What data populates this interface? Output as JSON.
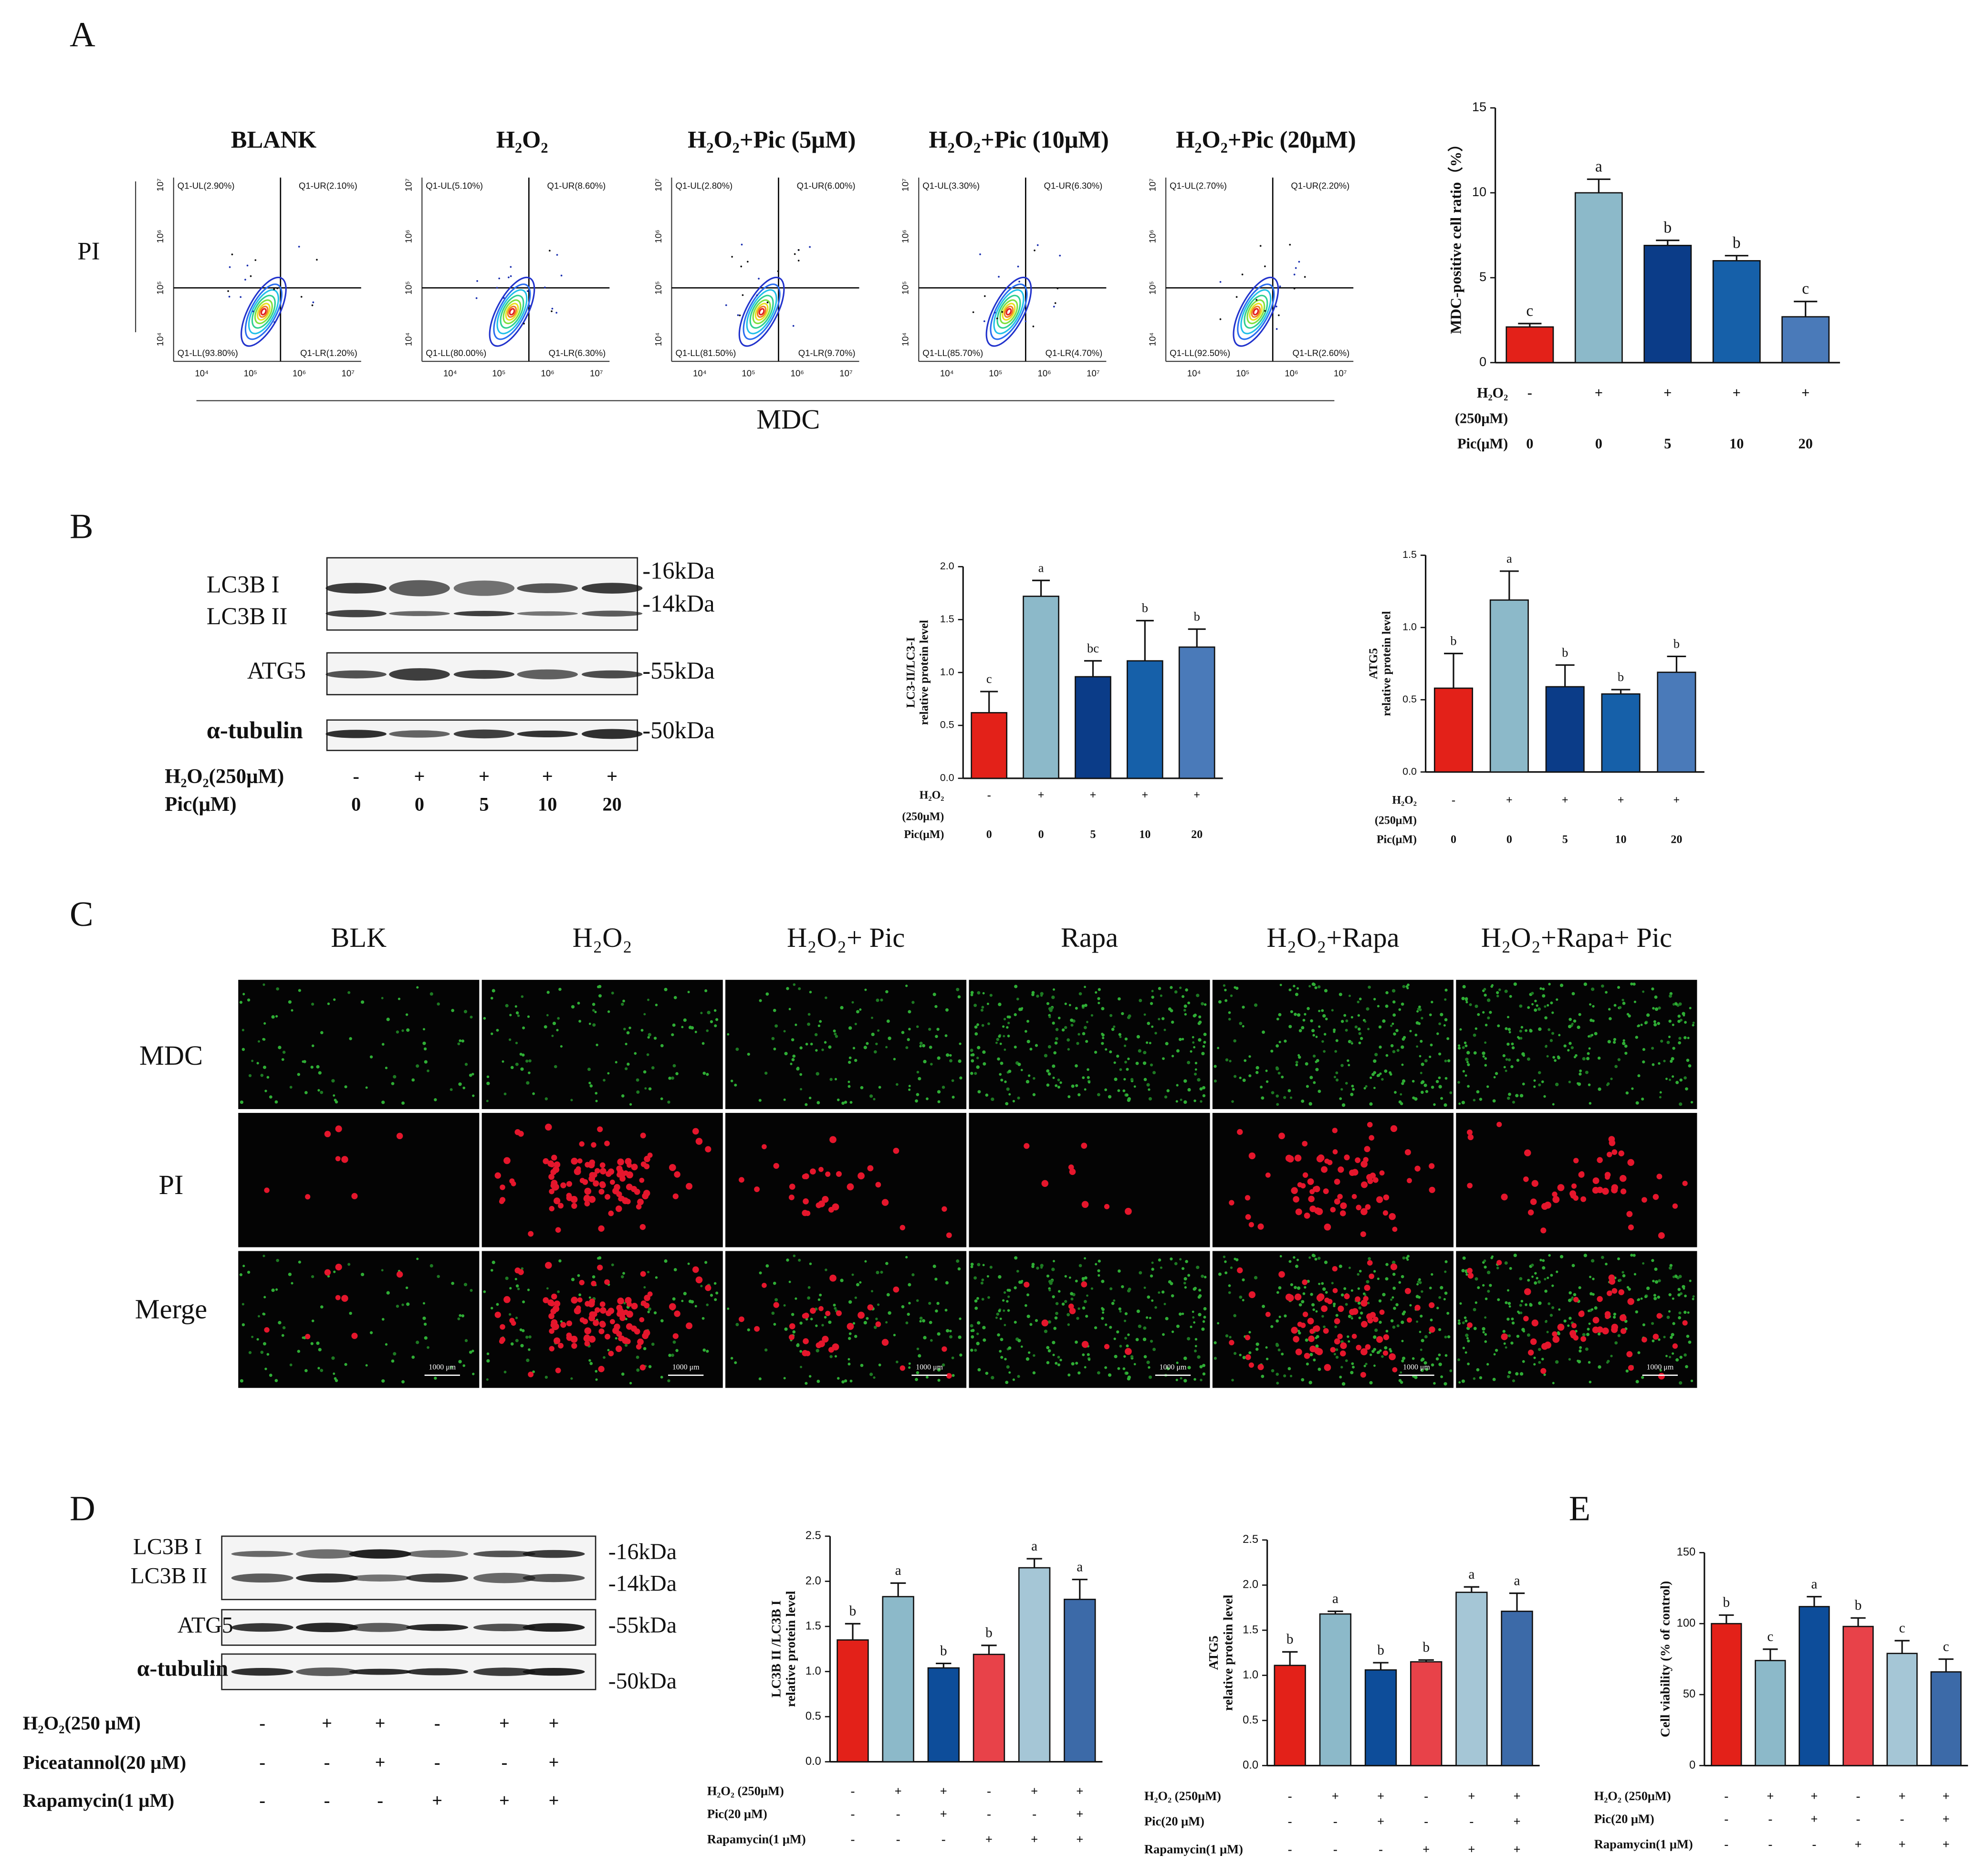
{
  "panel_labels": [
    "A",
    "B",
    "C",
    "D",
    "E"
  ],
  "flow": {
    "plots": [
      {
        "title": "BLANK",
        "quadrants": [
          "Q1-UL(2.90%)",
          "Q1-UR(2.10%)",
          "Q1-LL(93.80%)",
          "Q1-LR(1.20%)"
        ]
      },
      {
        "title": "H₂O₂",
        "quadrants": [
          "Q1-UL(5.10%)",
          "Q1-UR(8.60%)",
          "Q1-LL(80.00%)",
          "Q1-LR(6.30%)"
        ]
      },
      {
        "title": "H₂O₂+Pic (5μM)",
        "quadrants": [
          "Q1-UL(2.80%)",
          "Q1-UR(6.00%)",
          "Q1-LL(81.50%)",
          "Q1-LR(9.70%)"
        ]
      },
      {
        "title": "H₂O₂+Pic (10μM)",
        "quadrants": [
          "Q1-UL(3.30%)",
          "Q1-UR(6.30%)",
          "Q1-LL(85.70%)",
          "Q1-LR(4.70%)"
        ]
      },
      {
        "title": "H₂O₂+Pic (20μM)",
        "quadrants": [
          "Q1-UL(2.70%)",
          "Q1-UR(2.20%)",
          "Q1-LL(92.50%)",
          "Q1-LR(2.60%)"
        ]
      }
    ],
    "x_ticks": [
      "10⁴",
      "10⁵",
      "10⁶",
      "10⁷"
    ],
    "y_ticks": [
      "10⁴",
      "10⁵",
      "10⁶",
      "10⁷"
    ],
    "y_label": "PI",
    "x_label": "MDC"
  },
  "blot_b": {
    "bands": [
      "LC3B I",
      "LC3B II",
      "ATG5",
      "α-tubulin"
    ],
    "sizes": [
      "-16kDa",
      "-14kDa",
      "-55kDa",
      "-50kDa"
    ],
    "rows": [
      {
        "name": "H₂O₂(250μM)",
        "values": [
          "-",
          "+",
          "+",
          "+",
          "+"
        ]
      },
      {
        "name": "Pic(μM)",
        "values": [
          "0",
          "0",
          "5",
          "10",
          "20"
        ]
      }
    ]
  },
  "imaging": {
    "columns": [
      "BLK",
      "H₂O₂",
      "H₂O₂+ Pic",
      "Rapa",
      "H₂O₂+Rapa",
      "H₂O₂+Rapa+ Pic"
    ],
    "rows": [
      "MDC",
      "PI",
      "Merge"
    ],
    "scale_bar": "1000 μm"
  },
  "blot_d": {
    "bands": [
      "LC3B I",
      "LC3B II",
      "ATG5",
      "α-tubulin"
    ],
    "sizes": [
      "-16kDa",
      "-14kDa",
      "-55kDa",
      "-50kDa"
    ],
    "rows": [
      {
        "name": "H₂O₂(250 μM)",
        "values": [
          "-",
          "+",
          "+",
          "-",
          "+",
          "+"
        ]
      },
      {
        "name": "Piceatannol(20 μM)",
        "values": [
          "-",
          "-",
          "+",
          "-",
          "-",
          "+"
        ]
      },
      {
        "name": "Rapamycin(1 μM)",
        "values": [
          "-",
          "-",
          "-",
          "+",
          "+",
          "+"
        ]
      }
    ]
  },
  "chart_data": [
    {
      "type": "bar",
      "ylabel": [
        "MDC-positive cell ratio（%）"
      ],
      "values": [
        2.1,
        10.0,
        6.9,
        6.0,
        2.7
      ],
      "errors": [
        0.2,
        0.8,
        0.3,
        0.3,
        0.9
      ],
      "annotations": [
        "c",
        "a",
        "b",
        "b",
        "c"
      ],
      "colors": [
        "#e32119",
        "#8cb9c9",
        "#0b3c88",
        "#1660a9",
        "#4a7ab9"
      ],
      "ylim": [
        0,
        15
      ],
      "yticks": [
        0,
        5,
        10,
        15
      ],
      "treatments": [
        {
          "name": [
            "H₂O₂",
            "(250μM)"
          ],
          "values": [
            "-",
            "+",
            "+",
            "+",
            "+"
          ]
        },
        {
          "name": [
            "Pic(μM)"
          ],
          "values": [
            "0",
            "0",
            "5",
            "10",
            "20"
          ]
        }
      ]
    },
    {
      "type": "bar",
      "ylabel": [
        "LC3-II/LC3-I",
        "relative protein level"
      ],
      "values": [
        0.62,
        1.72,
        0.96,
        1.11,
        1.24
      ],
      "errors": [
        0.2,
        0.15,
        0.15,
        0.38,
        0.17
      ],
      "annotations": [
        "c",
        "a",
        "bc",
        "b",
        "b"
      ],
      "colors": [
        "#e32119",
        "#8cb9c9",
        "#0b3c88",
        "#1660a9",
        "#4a7ab9"
      ],
      "ylim": [
        0,
        2
      ],
      "yticks": [
        {
          "value": 0,
          "label": "0.0"
        },
        0.5,
        {
          "value": 1,
          "label": "1.0"
        },
        1.5,
        {
          "value": 2,
          "label": "2.0"
        }
      ],
      "treatments": [
        {
          "name": [
            "H₂O₂",
            "(250μM)"
          ],
          "values": [
            "-",
            "+",
            "+",
            "+",
            "+"
          ]
        },
        {
          "name": [
            "Pic(μM)"
          ],
          "values": [
            "0",
            "0",
            "5",
            "10",
            "20"
          ]
        }
      ]
    },
    {
      "type": "bar",
      "ylabel": [
        "ATG5",
        "relative protein level"
      ],
      "values": [
        0.58,
        1.19,
        0.59,
        0.54,
        0.69
      ],
      "errors": [
        0.24,
        0.2,
        0.15,
        0.03,
        0.11
      ],
      "annotations": [
        "b",
        "a",
        "b",
        "b",
        "b"
      ],
      "colors": [
        "#e32119",
        "#8cb9c9",
        "#0b3c88",
        "#1660a9",
        "#4a7ab9"
      ],
      "ylim": [
        0,
        1.5
      ],
      "yticks": [
        {
          "value": 0,
          "label": "0.0"
        },
        0.5,
        {
          "value": 1,
          "label": "1.0"
        },
        1.5
      ],
      "treatments": [
        {
          "name": [
            "H₂O₂",
            "(250μM)"
          ],
          "values": [
            "-",
            "+",
            "+",
            "+",
            "+"
          ]
        },
        {
          "name": [
            "Pic(μM)"
          ],
          "values": [
            "0",
            "0",
            "5",
            "10",
            "20"
          ]
        }
      ]
    },
    {
      "type": "bar",
      "ylabel": [
        "LC3B II /LC3B I",
        "relative protein level"
      ],
      "values": [
        1.35,
        1.83,
        1.04,
        1.19,
        2.15,
        1.8
      ],
      "errors": [
        0.18,
        0.15,
        0.05,
        0.1,
        0.1,
        0.22
      ],
      "annotations": [
        "b",
        "a",
        "b",
        "b",
        "a",
        "a"
      ],
      "colors": [
        "#e32119",
        "#8cb9c9",
        "#0d4d9a",
        "#e84249",
        "#a5c6d6",
        "#3c6aa8"
      ],
      "ylim": [
        0,
        2.5
      ],
      "yticks": [
        {
          "value": 0,
          "label": "0.0"
        },
        0.5,
        {
          "value": 1,
          "label": "1.0"
        },
        1.5,
        {
          "value": 2,
          "label": "2.0"
        },
        2.5
      ],
      "treatments": [
        {
          "name": [
            "H₂O₂ (250μM)"
          ],
          "values": [
            "-",
            "+",
            "+",
            "-",
            "+",
            "+"
          ]
        },
        {
          "name": [
            "Pic(20 μM)"
          ],
          "values": [
            "-",
            "-",
            "+",
            "-",
            "-",
            "+"
          ]
        },
        {
          "name": [
            "Rapamycin(1 μM)"
          ],
          "values": [
            "-",
            "-",
            "-",
            "+",
            "+",
            "+"
          ]
        }
      ]
    },
    {
      "type": "bar",
      "ylabel": [
        "ATG5",
        "relative protein level"
      ],
      "values": [
        1.11,
        1.68,
        1.06,
        1.15,
        1.92,
        1.71
      ],
      "errors": [
        0.15,
        0.03,
        0.08,
        0.02,
        0.06,
        0.2
      ],
      "annotations": [
        "b",
        "a",
        "b",
        "b",
        "a",
        "a"
      ],
      "colors": [
        "#e32119",
        "#8cb9c9",
        "#0d4d9a",
        "#e84249",
        "#a5c6d6",
        "#3c6aa8"
      ],
      "ylim": [
        0,
        2.5
      ],
      "yticks": [
        {
          "value": 0,
          "label": "0.0"
        },
        0.5,
        {
          "value": 1,
          "label": "1.0"
        },
        1.5,
        {
          "value": 2,
          "label": "2.0"
        },
        2.5
      ],
      "treatments": [
        {
          "name": [
            "H₂O₂ (250μM)"
          ],
          "values": [
            "-",
            "+",
            "+",
            "-",
            "+",
            "+"
          ]
        },
        {
          "name": [
            "Pic(20 μM)"
          ],
          "values": [
            "-",
            "-",
            "+",
            "-",
            "-",
            "+"
          ]
        },
        {
          "name": [
            "Rapamycin(1 μM)"
          ],
          "values": [
            "-",
            "-",
            "-",
            "+",
            "+",
            "+"
          ]
        }
      ]
    },
    {
      "type": "bar",
      "ylabel": [
        "Cell viability (% of control)"
      ],
      "values": [
        100,
        74,
        112,
        98,
        79,
        66
      ],
      "errors": [
        6,
        8,
        7,
        6,
        9,
        9
      ],
      "annotations": [
        "b",
        "c",
        "a",
        "b",
        "c",
        "c"
      ],
      "colors": [
        "#e32119",
        "#8cb9c9",
        "#0d4d9a",
        "#e84249",
        "#a5c6d6",
        "#3c6aa8"
      ],
      "ylim": [
        0,
        150
      ],
      "yticks": [
        0,
        50,
        100,
        150
      ],
      "treatments": [
        {
          "name": [
            "H₂O₂ (250μM)"
          ],
          "values": [
            "-",
            "+",
            "+",
            "-",
            "+",
            "+"
          ]
        },
        {
          "name": [
            "Pic(20 μM)"
          ],
          "values": [
            "-",
            "-",
            "+",
            "-",
            "-",
            "+"
          ]
        },
        {
          "name": [
            "Rapamycin(1 μM)"
          ],
          "values": [
            "-",
            "-",
            "-",
            "+",
            "+",
            "+"
          ]
        }
      ]
    }
  ]
}
